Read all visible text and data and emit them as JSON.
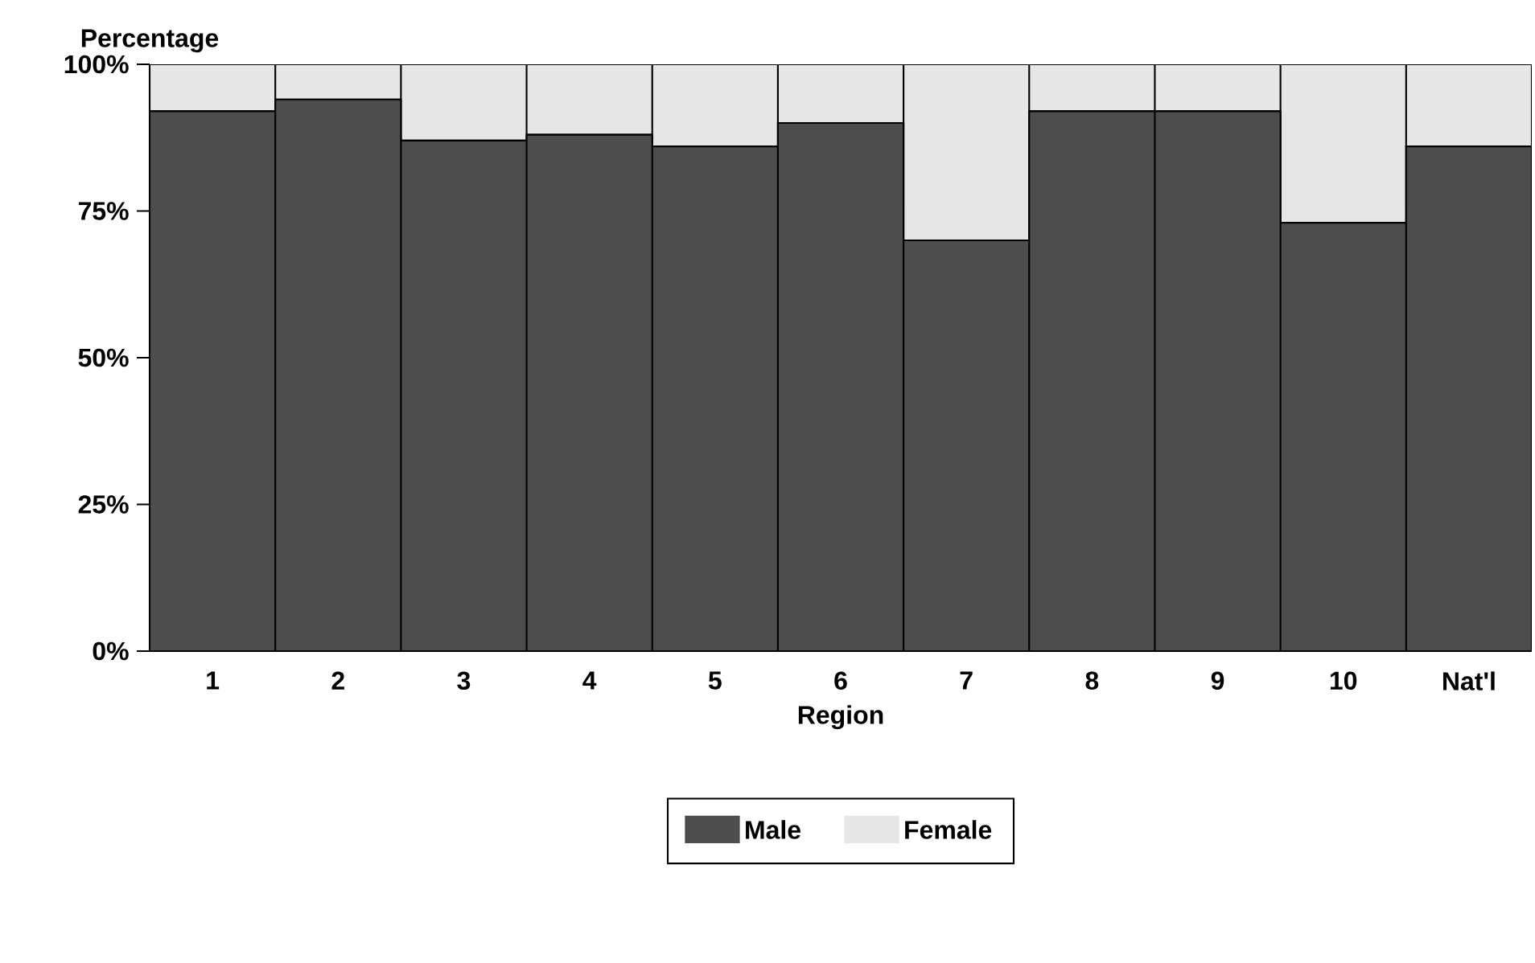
{
  "chart_data": {
    "type": "bar",
    "stacked": true,
    "xlabel": "Region",
    "ylabel": "Percentage",
    "categories": [
      "1",
      "2",
      "3",
      "4",
      "5",
      "6",
      "7",
      "8",
      "9",
      "10",
      "Nat'l"
    ],
    "series": [
      {
        "name": "Male",
        "color": "#4d4d4d",
        "values": [
          92,
          94,
          87,
          88,
          86,
          90,
          70,
          92,
          92,
          73,
          86
        ]
      },
      {
        "name": "Female",
        "color": "#e6e6e6",
        "values": [
          8,
          6,
          13,
          12,
          14,
          10,
          30,
          8,
          8,
          27,
          14
        ]
      }
    ],
    "ylim": [
      0,
      100
    ],
    "yticks": [
      {
        "value": 0,
        "label": "0%"
      },
      {
        "value": 25,
        "label": "25%"
      },
      {
        "value": 50,
        "label": "50%"
      },
      {
        "value": 75,
        "label": "75%"
      },
      {
        "value": 100,
        "label": "100%"
      }
    ],
    "legend": "bottom",
    "grid": false
  }
}
